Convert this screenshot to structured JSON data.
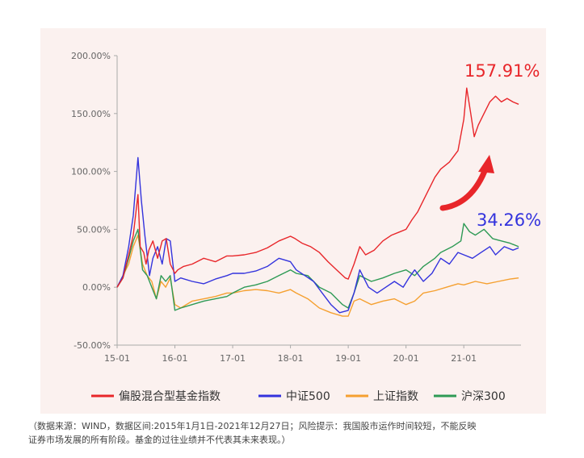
{
  "chart_data": {
    "type": "line",
    "y_unit": "%",
    "ylim": [
      -50,
      200
    ],
    "y_ticks": [
      "200.00%",
      "150.00%",
      "100.00%",
      "50.00%",
      "0.00%",
      "-50.00%"
    ],
    "y_tick_values": [
      200,
      150,
      100,
      50,
      0,
      -50
    ],
    "x_ticks": [
      "15-01",
      "16-01",
      "17-01",
      "18-01",
      "19-01",
      "20-01",
      "21-01"
    ],
    "x_range": [
      2015.0,
      2021.99
    ],
    "grid": false,
    "legend_position": "bottom",
    "series": [
      {
        "name": "偏股混合型基金指数",
        "color": "#e8262a",
        "end_label": "157.91%",
        "x": [
          2015.0,
          2015.1,
          2015.2,
          2015.28,
          2015.36,
          2015.4,
          2015.46,
          2015.5,
          2015.55,
          2015.62,
          2015.7,
          2015.78,
          2015.85,
          2015.92,
          2016.0,
          2016.05,
          2016.15,
          2016.3,
          2016.5,
          2016.7,
          2016.9,
          2017.0,
          2017.2,
          2017.4,
          2017.6,
          2017.8,
          2018.0,
          2018.08,
          2018.2,
          2018.35,
          2018.5,
          2018.65,
          2018.8,
          2018.95,
          2019.0,
          2019.1,
          2019.2,
          2019.3,
          2019.45,
          2019.6,
          2019.75,
          2019.9,
          2020.0,
          2020.1,
          2020.2,
          2020.35,
          2020.5,
          2020.6,
          2020.75,
          2020.9,
          2021.0,
          2021.05,
          2021.12,
          2021.18,
          2021.25,
          2021.35,
          2021.45,
          2021.55,
          2021.65,
          2021.75,
          2021.85,
          2021.95
        ],
        "values": [
          0,
          8,
          28,
          45,
          80,
          35,
          30,
          20,
          32,
          40,
          25,
          40,
          42,
          20,
          12,
          15,
          18,
          20,
          25,
          22,
          27,
          27,
          28,
          30,
          34,
          40,
          44,
          42,
          38,
          35,
          30,
          22,
          15,
          8,
          7,
          20,
          35,
          28,
          32,
          40,
          45,
          48,
          50,
          58,
          65,
          80,
          95,
          102,
          108,
          118,
          145,
          172,
          150,
          130,
          140,
          150,
          160,
          165,
          160,
          163,
          160,
          158
        ]
      },
      {
        "name": "中证500",
        "color": "#3333dd",
        "end_label": "34.26%",
        "x": [
          2015.0,
          2015.1,
          2015.2,
          2015.28,
          2015.36,
          2015.42,
          2015.48,
          2015.56,
          2015.62,
          2015.7,
          2015.78,
          2015.85,
          2015.92,
          2016.0,
          2016.1,
          2016.3,
          2016.5,
          2016.7,
          2016.9,
          2017.0,
          2017.2,
          2017.4,
          2017.6,
          2017.8,
          2018.0,
          2018.1,
          2018.25,
          2018.4,
          2018.55,
          2018.7,
          2018.85,
          2019.0,
          2019.1,
          2019.2,
          2019.35,
          2019.5,
          2019.65,
          2019.8,
          2019.95,
          2020.05,
          2020.15,
          2020.3,
          2020.45,
          2020.6,
          2020.75,
          2020.9,
          2021.0,
          2021.15,
          2021.3,
          2021.45,
          2021.55,
          2021.7,
          2021.85,
          2021.95
        ],
        "values": [
          0,
          10,
          35,
          62,
          112,
          75,
          45,
          10,
          25,
          35,
          20,
          42,
          40,
          5,
          8,
          5,
          3,
          7,
          10,
          12,
          12,
          14,
          18,
          25,
          22,
          15,
          10,
          5,
          -5,
          -15,
          -22,
          -20,
          -5,
          15,
          0,
          -5,
          0,
          5,
          0,
          8,
          15,
          5,
          12,
          25,
          20,
          30,
          28,
          25,
          30,
          35,
          28,
          35,
          32,
          34
        ]
      },
      {
        "name": "上证指数",
        "color": "#f5a030",
        "x": [
          2015.0,
          2015.1,
          2015.2,
          2015.28,
          2015.36,
          2015.44,
          2015.52,
          2015.6,
          2015.68,
          2015.76,
          2015.84,
          2015.92,
          2016.0,
          2016.1,
          2016.3,
          2016.5,
          2016.7,
          2016.9,
          2017.0,
          2017.2,
          2017.4,
          2017.6,
          2017.8,
          2018.0,
          2018.1,
          2018.3,
          2018.5,
          2018.7,
          2018.9,
          2019.0,
          2019.1,
          2019.2,
          2019.4,
          2019.6,
          2019.8,
          2020.0,
          2020.15,
          2020.3,
          2020.5,
          2020.7,
          2020.9,
          2021.0,
          2021.2,
          2021.4,
          2021.6,
          2021.8,
          2021.95
        ],
        "values": [
          0,
          10,
          20,
          35,
          45,
          20,
          10,
          5,
          -10,
          5,
          0,
          8,
          -15,
          -18,
          -12,
          -10,
          -8,
          -5,
          -5,
          -3,
          -2,
          -3,
          -5,
          -2,
          -5,
          -10,
          -18,
          -22,
          -25,
          -25,
          -12,
          -10,
          -15,
          -12,
          -10,
          -15,
          -12,
          -5,
          -3,
          0,
          3,
          2,
          5,
          3,
          5,
          7,
          8
        ]
      },
      {
        "name": "沪深300",
        "color": "#2e9a55",
        "x": [
          2015.0,
          2015.1,
          2015.2,
          2015.28,
          2015.36,
          2015.44,
          2015.52,
          2015.6,
          2015.68,
          2015.76,
          2015.84,
          2015.92,
          2016.0,
          2016.1,
          2016.3,
          2016.5,
          2016.7,
          2016.9,
          2017.0,
          2017.2,
          2017.4,
          2017.6,
          2017.8,
          2018.0,
          2018.1,
          2018.3,
          2018.5,
          2018.7,
          2018.9,
          2019.0,
          2019.1,
          2019.2,
          2019.4,
          2019.6,
          2019.8,
          2020.0,
          2020.15,
          2020.3,
          2020.5,
          2020.6,
          2020.8,
          2020.95,
          2021.0,
          2021.1,
          2021.2,
          2021.35,
          2021.5,
          2021.65,
          2021.8,
          2021.95
        ],
        "values": [
          0,
          8,
          25,
          40,
          50,
          15,
          10,
          0,
          -10,
          10,
          5,
          10,
          -20,
          -18,
          -15,
          -12,
          -10,
          -8,
          -5,
          0,
          2,
          5,
          10,
          15,
          12,
          10,
          0,
          -5,
          -15,
          -18,
          -5,
          10,
          5,
          8,
          12,
          15,
          10,
          18,
          25,
          30,
          35,
          40,
          55,
          48,
          45,
          50,
          42,
          40,
          38,
          35
        ]
      }
    ]
  },
  "caption_lines": [
    "（数据来源：WIND，数据区间:2015年1月1日-2021年12月27日；风险提示：我国股市运作时间较短，不能反映",
    "证券市场发展的所有阶段。基金的过往业绩并不代表其未来表现。）"
  ]
}
